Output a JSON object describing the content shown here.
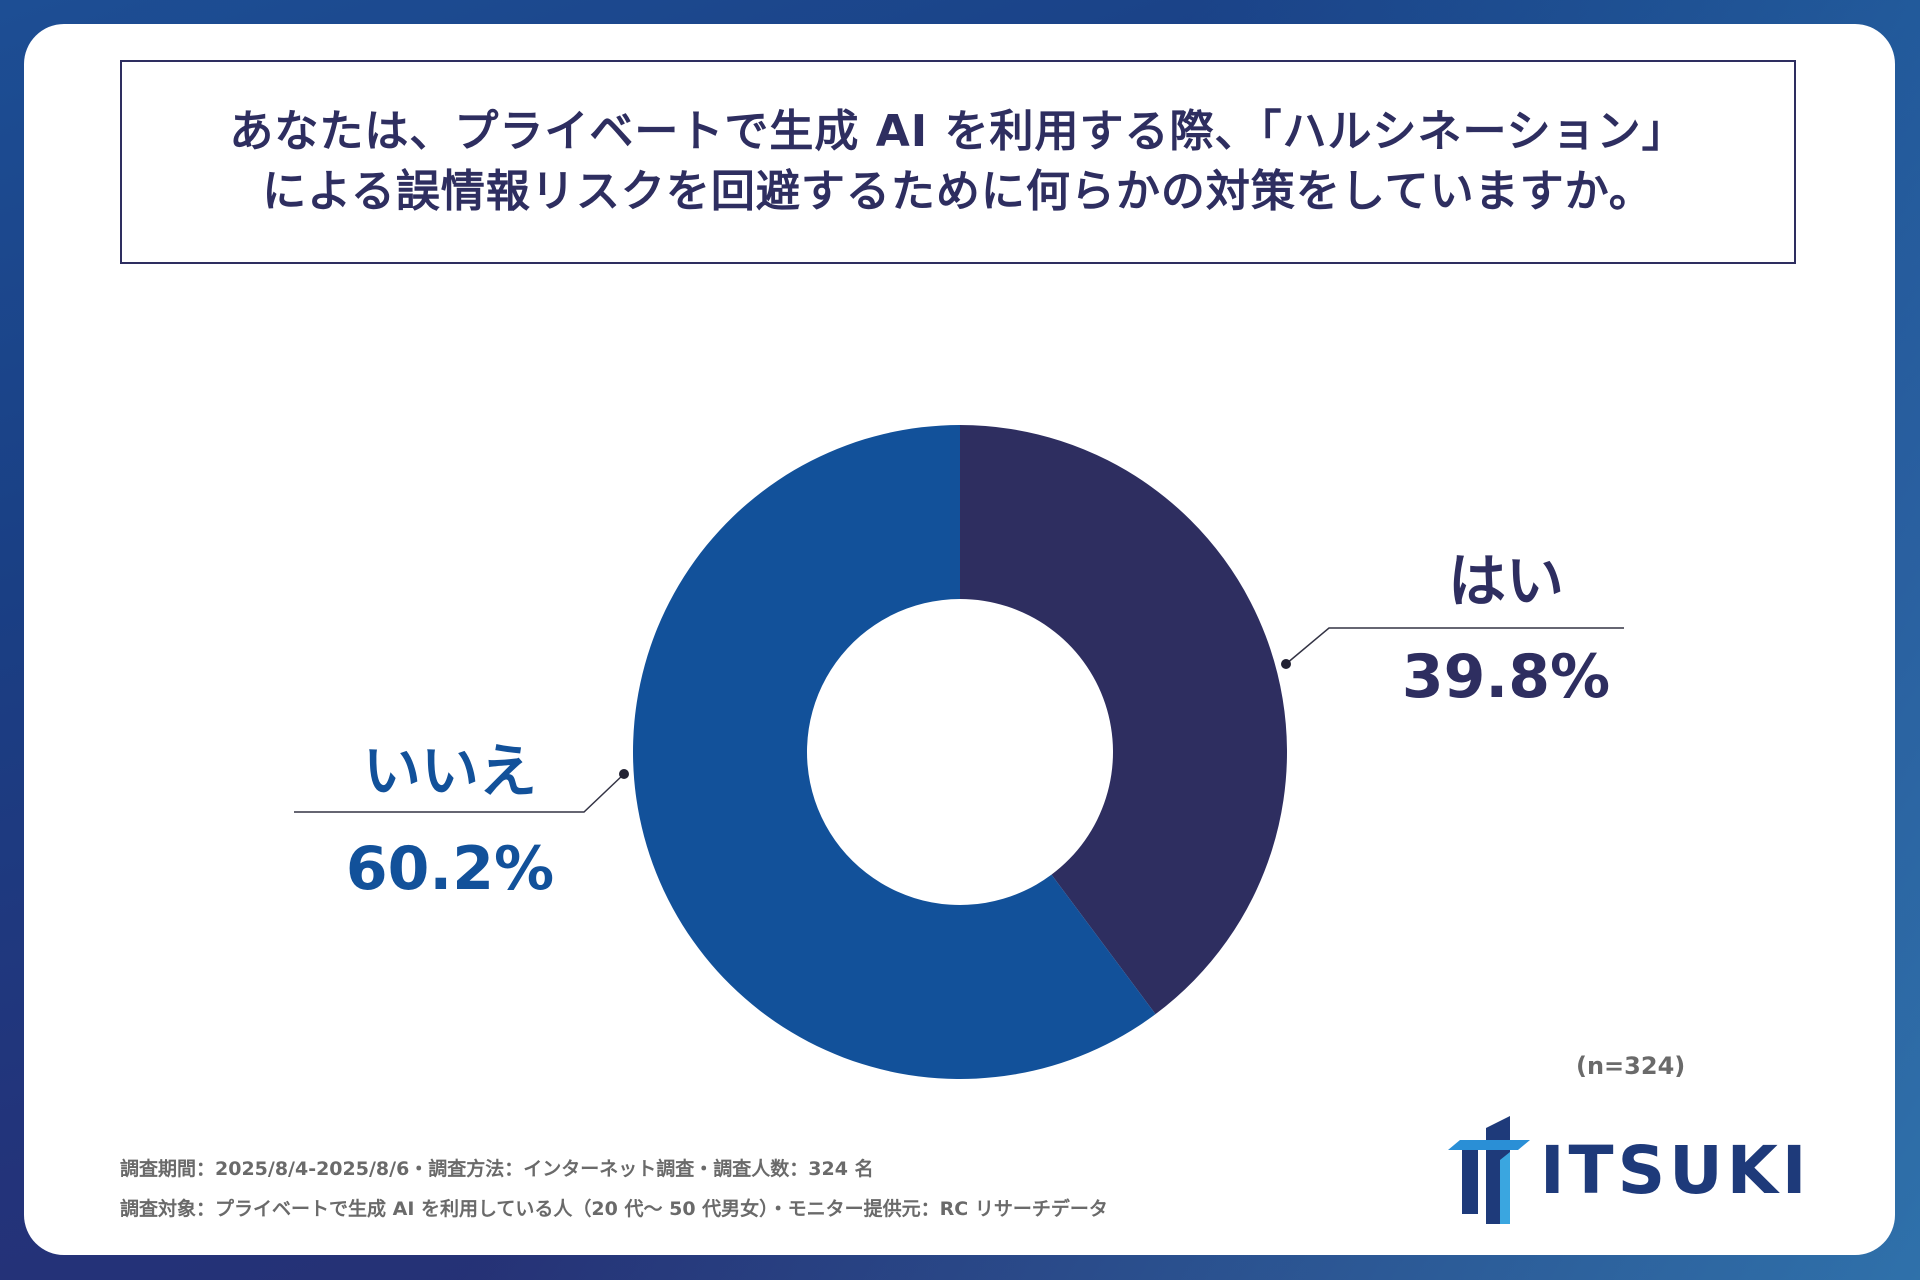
{
  "title": {
    "line1": "あなたは、プライベートで生成 AI を利用する際、「ハルシネーション」",
    "line2": "による誤情報リスクを回避するために何らかの対策をしていますか。"
  },
  "chart_data": {
    "type": "pie",
    "style": "donut",
    "categories": [
      "はい",
      "いいえ"
    ],
    "values": [
      39.8,
      60.2
    ],
    "value_labels": [
      "39.8%",
      "60.2%"
    ],
    "colors": [
      "#2e2e60",
      "#12519a"
    ],
    "start": "12 o'clock, clockwise"
  },
  "labels": {
    "yes_name": "はい",
    "yes_value": "39.8%",
    "no_name": "いいえ",
    "no_value": "60.2%"
  },
  "sample_size": "(n=324)",
  "footnotes": {
    "line1": "調査期間：2025/8/4-2025/8/6・調査方法：インターネット調査・調査人数：324 名",
    "line2": "調査対象：プライベートで生成 AI を利用している人（20 代～ 50 代男女）・モニター提供元：RC リサーチデータ"
  },
  "logo": {
    "text": "ITSUKI"
  }
}
